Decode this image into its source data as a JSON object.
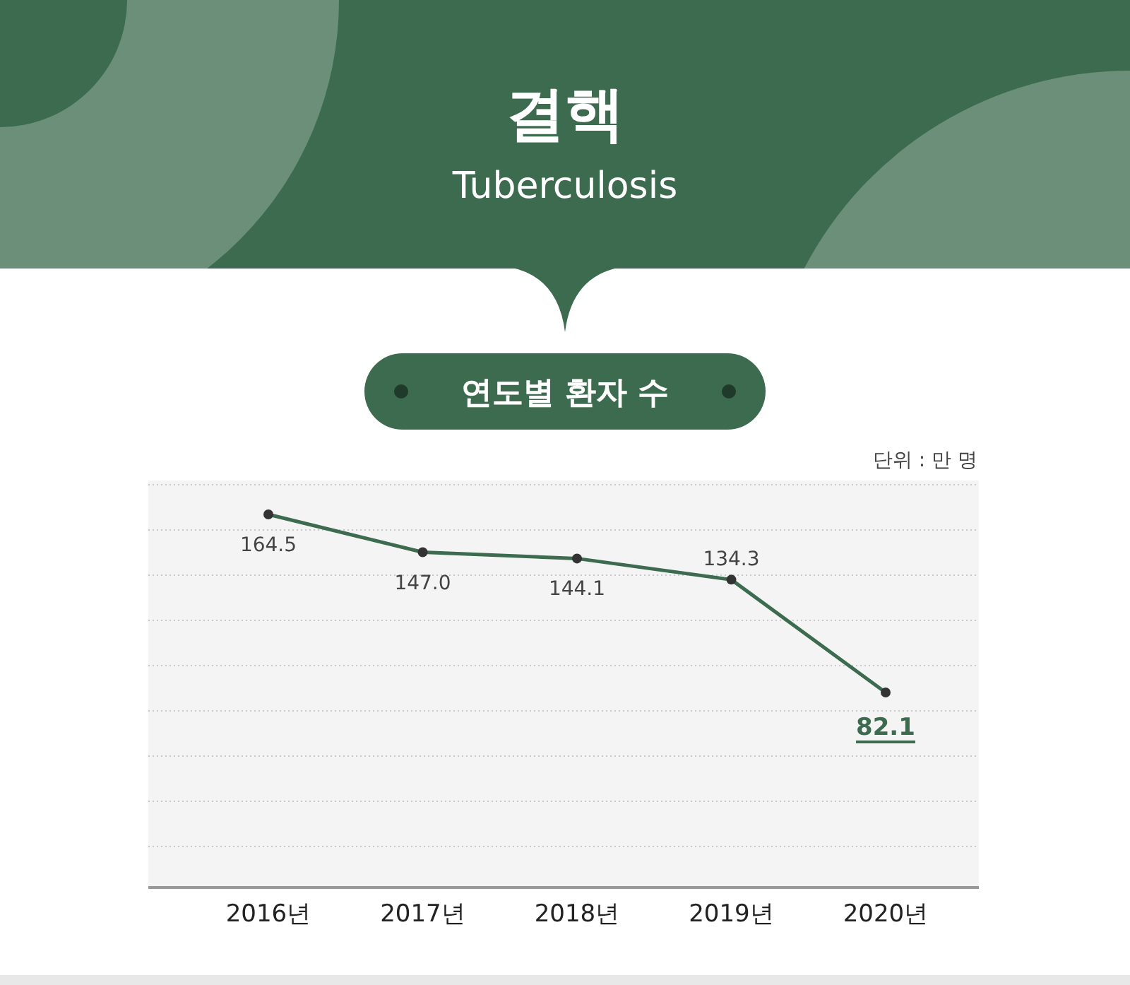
{
  "chart_data": {
    "type": "line",
    "title": "결핵",
    "subtitle": "Tuberculosis",
    "annotations": [
      "연도별 환자 수",
      "단위 : 만 명"
    ],
    "categories": [
      "2016년",
      "2017년",
      "2018년",
      "2019년",
      "2020년"
    ],
    "series": [
      {
        "color": "#3d6b4f",
        "values": [
          164.5,
          147.0,
          144.1,
          134.3,
          82.1
        ],
        "value_labels": [
          "164.5",
          "147.0",
          "144.1",
          "134.3",
          "82.1"
        ]
      }
    ],
    "grid": "y",
    "marker": "circle",
    "line_style": "solid"
  }
}
